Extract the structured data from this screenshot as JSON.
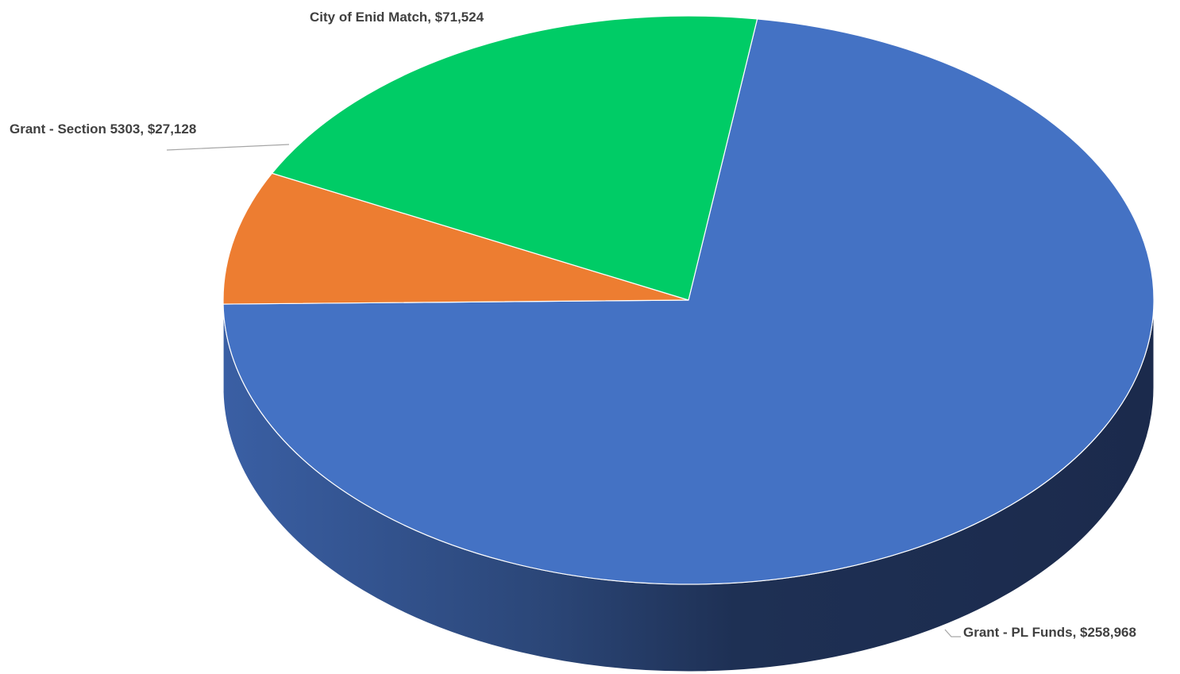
{
  "chart_data": {
    "type": "pie",
    "style": "3d",
    "title": "",
    "series": [
      {
        "values": [
          258968,
          27128,
          71524
        ],
        "slices": [
          {
            "label": "Grant - PL Funds",
            "value": 258968,
            "display": "Grant - PL Funds, $258,968",
            "color": "#4472C4"
          },
          {
            "label": "Grant - Section 5303",
            "value": 27128,
            "display": "Grant - Section 5303, $27,128",
            "color": "#ED7D31"
          },
          {
            "label": "City of Enid Match",
            "value": 71524,
            "display": "City of Enid Match, $71,524",
            "color": "#00CC66"
          }
        ]
      }
    ],
    "legend": "none",
    "data_labels": "category-name-and-value"
  }
}
